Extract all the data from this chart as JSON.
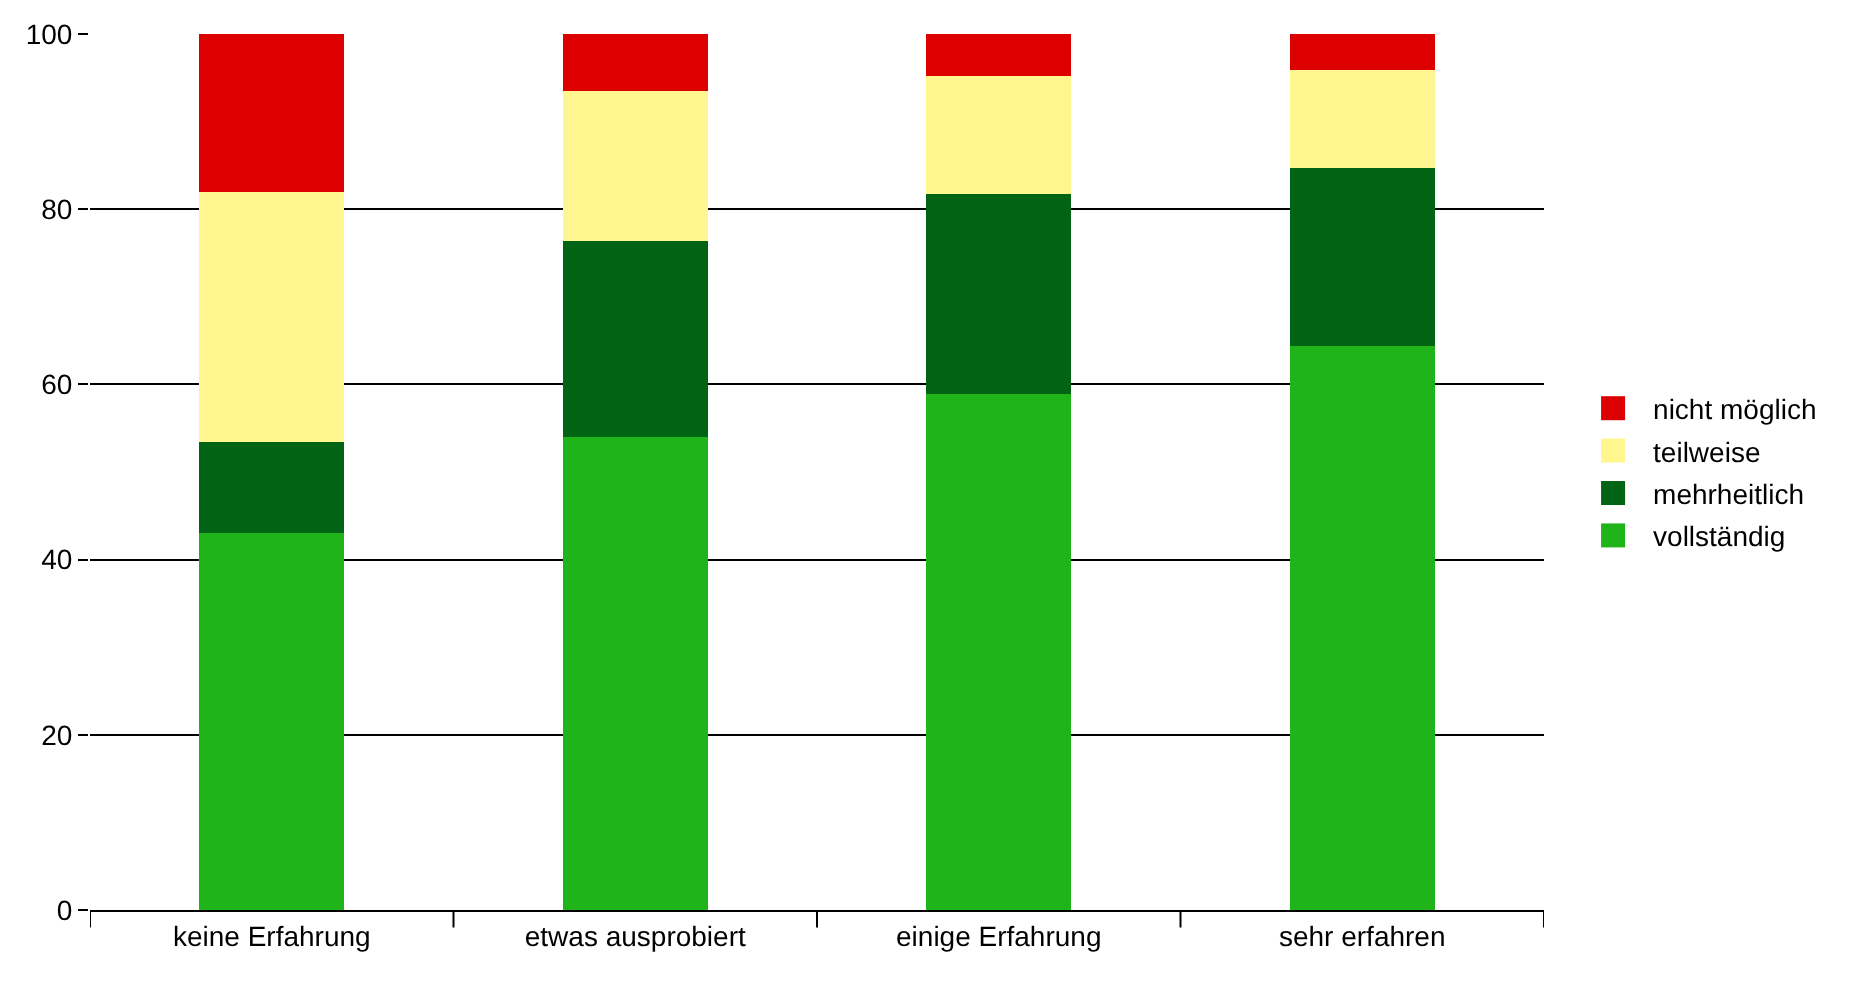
{
  "chart_data": {
    "type": "bar",
    "stacked": true,
    "categories": [
      "keine Erfahrung",
      "etwas ausprobiert",
      "einige Erfahrung",
      "sehr erfahren"
    ],
    "series": [
      {
        "name": "vollständig",
        "color": "#1fb41a",
        "values": [
          43,
          54,
          58.9,
          64.4
        ]
      },
      {
        "name": "mehrheitlich",
        "color": "#006414",
        "values": [
          10.4,
          22.4,
          22.8,
          20.3
        ]
      },
      {
        "name": "teilweise",
        "color": "#fff68f",
        "values": [
          28.6,
          17.1,
          13.5,
          11.2
        ]
      },
      {
        "name": "nicht möglich",
        "color": "#dd0000",
        "values": [
          18,
          6.5,
          4.8,
          4.1
        ]
      }
    ],
    "ylim": [
      0,
      100
    ],
    "yticks": [
      0,
      20,
      40,
      60,
      80,
      100
    ],
    "grid": "y",
    "legend": "right"
  }
}
